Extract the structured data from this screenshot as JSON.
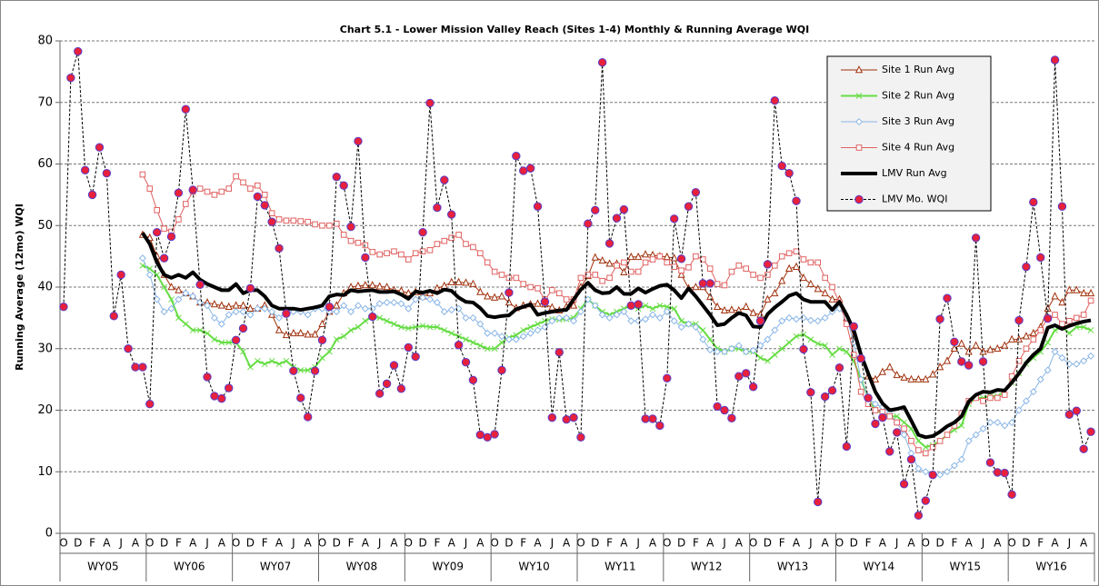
{
  "chart_data": {
    "type": "line",
    "title": "Chart 5.1 -  Lower Mission Valley Reach (Sites 1-4) Monthly & Running Average WQI",
    "y_label": "Running Average (12mo) WQI",
    "ylim": [
      0,
      80
    ],
    "yticks": [
      0,
      10,
      20,
      30,
      40,
      50,
      60,
      70,
      80
    ],
    "grid": true,
    "legend": "top-right",
    "categories": [
      "O",
      null,
      "D",
      null,
      "F",
      null,
      "A",
      null,
      "J",
      null,
      "A",
      null,
      "O",
      null,
      "D",
      null,
      "F",
      null,
      "A",
      null,
      "J",
      null,
      "A",
      null,
      "O",
      null,
      "D",
      null,
      "F",
      null,
      "A",
      null,
      "J",
      null,
      "A",
      null,
      "O",
      null,
      "D",
      null,
      "F",
      null,
      "A",
      null,
      "J",
      null,
      "A",
      null,
      "O",
      null,
      "D",
      null,
      "F",
      null,
      "A",
      null,
      "J",
      null,
      "A",
      null,
      "O",
      null,
      "D",
      null,
      "F",
      null,
      "A",
      null,
      "J",
      null,
      "A",
      null,
      "O",
      null,
      "D",
      null,
      "F",
      null,
      "A",
      null,
      "J",
      null,
      "A",
      null,
      "O",
      null,
      "D",
      null,
      "F",
      null,
      "A",
      null,
      "J",
      null,
      "A",
      null,
      "O",
      null,
      "D",
      null,
      "F",
      null,
      "A",
      null,
      "J",
      null,
      "A",
      null,
      "O",
      null,
      "D",
      null,
      "F",
      null,
      "A",
      null,
      "J",
      null,
      "A",
      null,
      "O",
      null,
      "D",
      null,
      "F",
      null,
      "A",
      null,
      "J",
      null,
      "A",
      null,
      "O",
      null,
      "D",
      null,
      "F",
      null,
      "A",
      null,
      "J",
      null,
      "A",
      null
    ],
    "groups": [
      "WY05",
      "WY06",
      "WY07",
      "WY08",
      "WY09",
      "WY10",
      "WY11",
      "WY12",
      "WY13",
      "WY14",
      "WY15",
      "WY16"
    ],
    "series": [
      {
        "name": "Site 1 Run Avg",
        "color": "#a0300c",
        "marker": "triangle",
        "style": "solid",
        "width": 1,
        "values": [
          null,
          null,
          null,
          null,
          null,
          null,
          null,
          null,
          null,
          null,
          null,
          48.5,
          48,
          45,
          42,
          40,
          39.5,
          39,
          38.5,
          37.5,
          37.5,
          37.2,
          37,
          36.8,
          37,
          37,
          36.5,
          36.5,
          37,
          35.5,
          33,
          32.2,
          32.5,
          32.5,
          32.3,
          32.3,
          34,
          36,
          37,
          39,
          40,
          40.2,
          40.3,
          40.3,
          40.1,
          40,
          39.5,
          39.4,
          39,
          39.2,
          38.5,
          39,
          39.8,
          40.2,
          40.8,
          40.8,
          40.7,
          40.5,
          39.2,
          38.5,
          38.3,
          38.5,
          37.5,
          36.6,
          37,
          37.2,
          37.3,
          37.2,
          36.7,
          36.2,
          36.8,
          37,
          40,
          41.8,
          44.8,
          44.3,
          43.8,
          43.8,
          42.4,
          44.9,
          44.9,
          45.3,
          45.2,
          45,
          44.9,
          44.7,
          42,
          39.8,
          40,
          40,
          38.4,
          36.8,
          36.2,
          36.3,
          36.2,
          36.8,
          35.8,
          35.5,
          38,
          39,
          41,
          43,
          43.3,
          41.5,
          40.5,
          39.7,
          39,
          38,
          38,
          35,
          32,
          28.5,
          25.5,
          25,
          26.2,
          27,
          25.7,
          25.3,
          25,
          25,
          25,
          25.8,
          27,
          28,
          30,
          30.8,
          29.5,
          30.5,
          29.5,
          29.8,
          30,
          30.5,
          31.5,
          31.5,
          32,
          32.5,
          33.5,
          36.5,
          38.5,
          37.5,
          39.5,
          39.5,
          39,
          39
        ]
      },
      {
        "name": "Site 2 Run Avg",
        "color": "#66dd44",
        "marker": "x",
        "style": "solid",
        "width": 2,
        "values": [
          null,
          null,
          null,
          null,
          null,
          null,
          null,
          null,
          null,
          null,
          null,
          43.5,
          43,
          42,
          40,
          38,
          35,
          34,
          33,
          33,
          32.5,
          31.5,
          31,
          31,
          31,
          29.5,
          27,
          28,
          27.5,
          28,
          27.5,
          28,
          27,
          26.5,
          26.5,
          27,
          28.5,
          29.5,
          31.5,
          32,
          33,
          33.5,
          34.5,
          35.2,
          35,
          34.5,
          34,
          33.5,
          33.3,
          33.5,
          33.7,
          33.5,
          33.5,
          33,
          32.5,
          32,
          31.5,
          31,
          30.5,
          30,
          30,
          31,
          31.8,
          32.2,
          33,
          33.5,
          34,
          34.5,
          34.8,
          34.7,
          34.8,
          35,
          36.5,
          38,
          37,
          36,
          35.5,
          36,
          36.5,
          37,
          36.5,
          37,
          36.5,
          37,
          36.8,
          36.5,
          34.5,
          34,
          34,
          33,
          31.5,
          30,
          29.5,
          30,
          30,
          29.5,
          29.5,
          28.5,
          28,
          29,
          30,
          31,
          32,
          32.3,
          31.5,
          30.8,
          30.5,
          29,
          30,
          29.5,
          28,
          25,
          22,
          20,
          19.5,
          19,
          19,
          18,
          17,
          15,
          14,
          14.3,
          15,
          16,
          16.8,
          17.5,
          21,
          22,
          22,
          22.3,
          22.3,
          23,
          24.5,
          26,
          27.5,
          28.5,
          29.5,
          31,
          33,
          33.5,
          32.5,
          33.5,
          33.5,
          33
        ]
      },
      {
        "name": "Site 3 Run Avg",
        "color": "#8ab6e6",
        "marker": "diamond",
        "style": "solid",
        "width": 1,
        "values": [
          null,
          null,
          null,
          null,
          null,
          null,
          null,
          null,
          null,
          null,
          null,
          44.7,
          42,
          38,
          36,
          36.5,
          38,
          39,
          38.5,
          37.5,
          37,
          35,
          34,
          35.5,
          36,
          36,
          35.5,
          36.5,
          36.5,
          36,
          35,
          36,
          36,
          36,
          35.5,
          36.5,
          36.5,
          36,
          36,
          37,
          36,
          37,
          36.5,
          36.5,
          37.3,
          37.5,
          37.5,
          37.3,
          36.5,
          38,
          38.3,
          38,
          37.5,
          36,
          36.3,
          36.5,
          35,
          35,
          34,
          32.5,
          32.5,
          32,
          31.5,
          31.5,
          32,
          32.5,
          33,
          33.5,
          34.5,
          35,
          35,
          34.5,
          36,
          38,
          37,
          35.5,
          35,
          35.5,
          36,
          34.5,
          34.5,
          34.8,
          35.5,
          35,
          36,
          34.5,
          33.5,
          34,
          33.5,
          31.5,
          29.8,
          29.5,
          29.5,
          30,
          30.5,
          29.5,
          29.7,
          30.5,
          31.5,
          33,
          34.5,
          35,
          34.8,
          35,
          34.6,
          34.5,
          35,
          36,
          36.5,
          35,
          31,
          25,
          22,
          21,
          20.5,
          19.5,
          18,
          16,
          13,
          10.5,
          10,
          9.5,
          9.5,
          10,
          11,
          12,
          15,
          16,
          17,
          18,
          18,
          17.5,
          18,
          20,
          21.5,
          23,
          25,
          26.5,
          29.5,
          28.5,
          27.5,
          27.5,
          28,
          28.8
        ]
      },
      {
        "name": "Site 4 Run Avg",
        "color": "#e06262",
        "marker": "square",
        "style": "solid",
        "width": 1,
        "values": [
          null,
          null,
          null,
          null,
          null,
          null,
          null,
          null,
          null,
          null,
          null,
          58.3,
          56,
          52.5,
          49.5,
          49,
          51,
          53.5,
          55.5,
          56,
          55.5,
          55,
          55.5,
          56,
          58,
          57,
          56,
          56.5,
          55,
          52,
          51,
          50.8,
          50.8,
          50.7,
          50.6,
          50.2,
          50,
          50,
          50.3,
          48.5,
          47.5,
          47.2,
          46.8,
          45.7,
          45.3,
          45.5,
          45.8,
          45.3,
          44.5,
          45.5,
          45.8,
          46,
          47,
          47.5,
          48,
          48.5,
          47,
          46.5,
          45.5,
          44,
          42.5,
          42,
          41.5,
          41.5,
          40.5,
          40,
          39.8,
          38,
          39.5,
          39,
          38,
          38,
          41.5,
          42,
          42,
          41,
          41.5,
          43.5,
          44,
          42.5,
          42.5,
          44,
          44.5,
          45,
          44,
          43.3,
          42.7,
          43.2,
          45,
          44.5,
          43,
          40.5,
          40.3,
          42.5,
          43.5,
          43,
          42,
          41.5,
          42,
          43.5,
          45,
          45.5,
          45.8,
          44.5,
          44,
          44,
          41.5,
          40,
          37.5,
          34,
          29,
          23,
          21,
          20,
          19.7,
          19,
          18,
          17,
          15,
          13.5,
          13,
          14,
          15,
          16,
          17.5,
          19.5,
          21.5,
          22,
          21.5,
          22,
          22,
          22.5,
          25.5,
          28,
          30,
          31.5,
          33,
          35,
          35.5,
          34,
          34.5,
          35,
          35.5,
          37.8
        ]
      },
      {
        "name": "LMV Run Avg",
        "color": "#000000",
        "marker": null,
        "style": "solid",
        "width": 4,
        "values": [
          null,
          null,
          null,
          null,
          null,
          null,
          null,
          null,
          null,
          null,
          null,
          48.8,
          47,
          44,
          42,
          41.5,
          42,
          41.5,
          42.4,
          41.2,
          40.5,
          40,
          39.5,
          39.5,
          40.5,
          39,
          39.5,
          39.5,
          38.5,
          37,
          36.5,
          36.5,
          36.5,
          36.3,
          36.5,
          36.7,
          37,
          38.5,
          38.8,
          38.7,
          39.5,
          39.3,
          39.4,
          39.5,
          39.2,
          39.2,
          39.3,
          38.8,
          38.1,
          39.3,
          39.1,
          39.4,
          39,
          39.6,
          39.4,
          38.3,
          37.6,
          37.5,
          36.6,
          35.3,
          35.1,
          35.3,
          35.4,
          36.4,
          36.8,
          37.2,
          35.5,
          35.8,
          36,
          36.2,
          36.3,
          38,
          39.6,
          40.7,
          39.5,
          39,
          39.1,
          40,
          38.9,
          38.9,
          39.8,
          39.1,
          39.7,
          40.2,
          40.4,
          39.5,
          38.2,
          39.8,
          38.5,
          37,
          35.5,
          33.8,
          34,
          35,
          35.8,
          35.4,
          33.6,
          33.5,
          35.6,
          36.7,
          37.6,
          38.6,
          39,
          38,
          37.6,
          37.6,
          37.6,
          36.3,
          37.6,
          35.5,
          33,
          29,
          26,
          23,
          21.1,
          20,
          20.2,
          20.5,
          18.3,
          16,
          15.6,
          15.8,
          16.5,
          17.4,
          18,
          19,
          21.4,
          22.5,
          23,
          22.9,
          23.3,
          23.2,
          24.5,
          26,
          27.7,
          29,
          30,
          33.4,
          33.8,
          33.2,
          33.7,
          34.1,
          34.4,
          34.6
        ]
      },
      {
        "name": "LMV Mo. WQI",
        "color": "#000000",
        "marker": "circle",
        "marker_color": "#e8203c",
        "marker_edge": "#5a3cc8",
        "style": "dashed",
        "width": 1,
        "values": [
          36.8,
          74,
          78.3,
          59,
          55,
          62.7,
          58.5,
          35.3,
          42,
          30,
          27,
          27,
          21,
          48.9,
          44.7,
          48.2,
          55.3,
          68.9,
          55.8,
          40.4,
          25.4,
          22.3,
          21.9,
          23.6,
          31.4,
          33.3,
          39.8,
          54.7,
          53.3,
          50.6,
          46.3,
          35.7,
          26.4,
          22,
          18.9,
          26.4,
          31.4,
          36.8,
          57.9,
          56.5,
          49.8,
          63.7,
          44.8,
          35.2,
          22.7,
          24.3,
          27.3,
          23.5,
          30.2,
          28.7,
          48.9,
          69.9,
          52.9,
          57.4,
          51.8,
          30.6,
          27.8,
          24.9,
          16,
          15.6,
          16.1,
          26.5,
          39.1,
          61.3,
          58.9,
          59.3,
          53.1,
          37.6,
          18.8,
          29.4,
          18.5,
          18.8,
          15.6,
          50.3,
          52.5,
          76.5,
          47.1,
          51.2,
          52.6,
          37,
          37.2,
          18.6,
          18.6,
          17.5,
          25.2,
          51.1,
          44.6,
          53.1,
          55.4,
          40.6,
          40.6,
          20.6,
          20,
          18.7,
          25.5,
          26,
          23.8,
          34.5,
          43.7,
          70.3,
          59.7,
          58.5,
          54,
          29.9,
          22.9,
          5.1,
          22.2,
          23.2,
          26.9,
          14.1,
          33.6,
          28.4,
          22,
          17.8,
          18.8,
          13.3,
          16.4,
          8,
          12,
          2.9,
          5.3,
          9.5,
          34.8,
          38.2,
          31.1,
          27.9,
          27.3,
          48,
          27.9,
          11.5,
          9.9,
          9.8,
          6.3,
          34.6,
          43.3,
          53.8,
          44.8,
          34.9,
          76.9,
          53.1,
          19.3,
          19.9,
          13.7,
          16.5
        ]
      }
    ]
  }
}
